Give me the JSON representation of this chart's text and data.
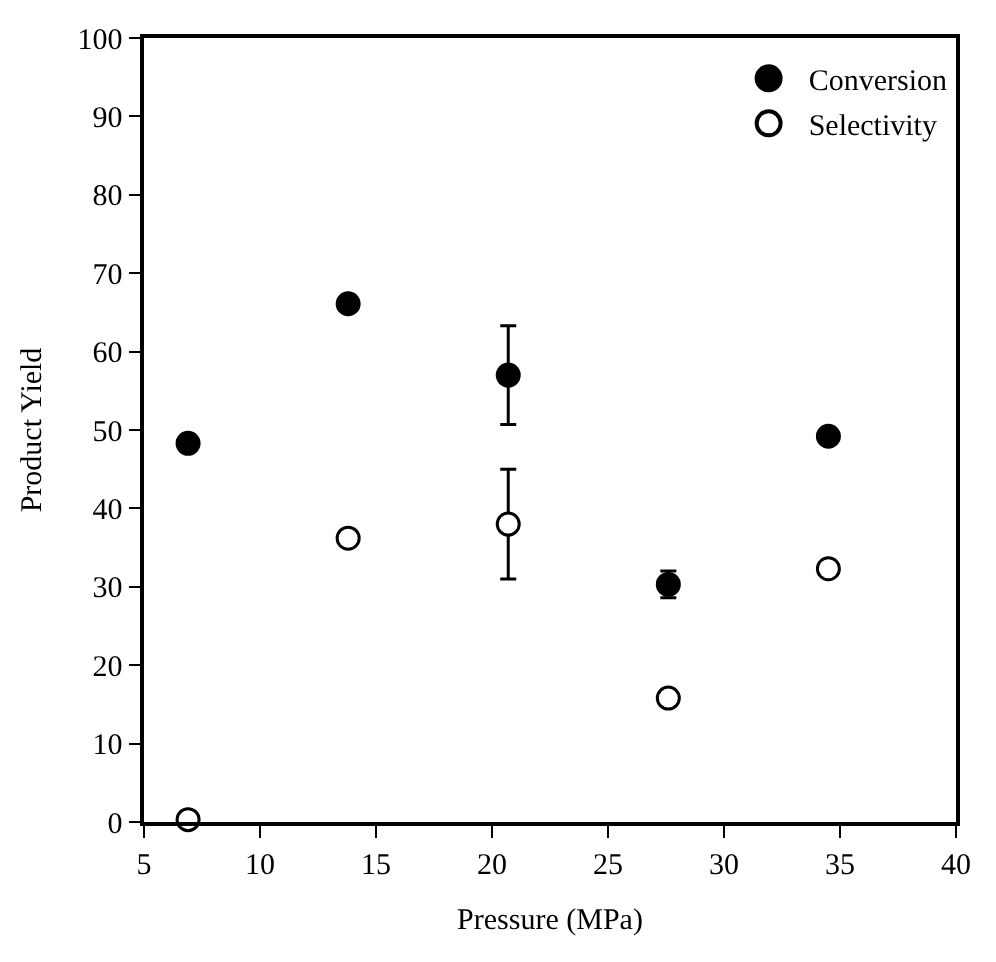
{
  "chart_data": {
    "type": "scatter",
    "xlabel": "Pressure (MPa)",
    "ylabel": "Product Yield",
    "x": [
      6.9,
      13.8,
      20.7,
      27.6,
      34.5
    ],
    "series": [
      {
        "name": "Conversion",
        "color": "#000000",
        "values": [
          48.3,
          66.1,
          57,
          30.3,
          49.2
        ],
        "errors": [
          null,
          null,
          6.3,
          1.7,
          null
        ]
      },
      {
        "name": "Selectivity",
        "color": "#ffffff",
        "values": [
          0.3,
          36.2,
          38,
          15.8,
          32.3
        ],
        "errors": [
          null,
          null,
          7,
          null,
          null
        ]
      }
    ],
    "xlim": [
      5,
      40
    ],
    "xticks": [
      5,
      10,
      15,
      20,
      25,
      30,
      35,
      40
    ],
    "ylim": [
      0,
      100
    ],
    "yticks": [
      0,
      10,
      20,
      30,
      40,
      50,
      60,
      70,
      80,
      90,
      100
    ],
    "grid": false,
    "legend": "top right",
    "marker": "circle"
  }
}
